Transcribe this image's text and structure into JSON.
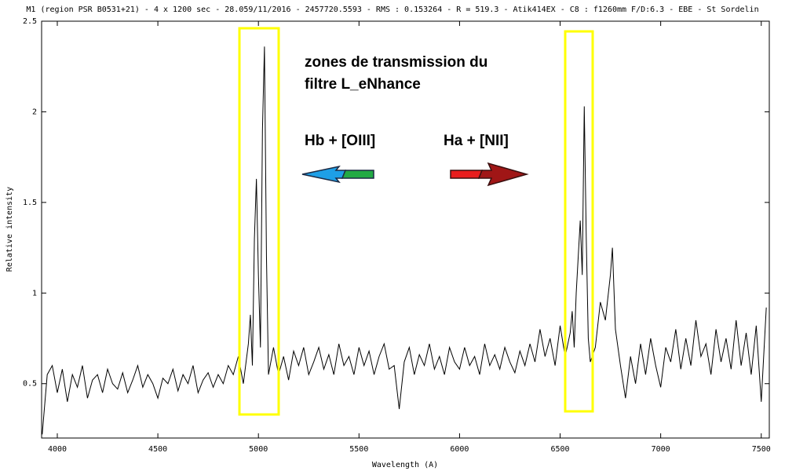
{
  "chart_data": {
    "type": "line",
    "title": "M1 (region PSR B0531+21) - 4 x 1200 sec - 28.059/11/2016 - 2457720.5593 - RMS : 0.153264 - R = 519.3 - Atik414EX - C8 : f1260mm F/D:6.3 - EBE - St Sordelin",
    "x_label": "Wavelength (A)",
    "y_label": "Relative intensity",
    "annotations": [
      "zones de transmission du",
      "filtre L_eNhance",
      "Hb + [OIII]",
      "Ha + [NII]"
    ],
    "xlim": [
      3922,
      7540
    ],
    "ylim": [
      0.2,
      2.5
    ],
    "xticks": [
      4000,
      4500,
      5000,
      5500,
      6000,
      6500,
      7000,
      7500
    ],
    "yticks": [
      0.5,
      1,
      1.5,
      2,
      2.5
    ],
    "grid": false,
    "x": [
      3925,
      3950,
      3975,
      4000,
      4025,
      4050,
      4075,
      4100,
      4125,
      4150,
      4175,
      4200,
      4225,
      4250,
      4275,
      4300,
      4325,
      4350,
      4375,
      4400,
      4425,
      4450,
      4475,
      4500,
      4525,
      4550,
      4575,
      4600,
      4625,
      4650,
      4675,
      4700,
      4725,
      4750,
      4775,
      4800,
      4825,
      4850,
      4875,
      4900,
      4925,
      4950,
      4960,
      4970,
      4980,
      4990,
      5000,
      5010,
      5020,
      5030,
      5040,
      5050,
      5075,
      5100,
      5125,
      5150,
      5175,
      5200,
      5225,
      5250,
      5275,
      5300,
      5325,
      5350,
      5375,
      5400,
      5425,
      5450,
      5475,
      5500,
      5525,
      5550,
      5575,
      5600,
      5625,
      5650,
      5675,
      5700,
      5725,
      5750,
      5775,
      5800,
      5825,
      5850,
      5875,
      5900,
      5925,
      5950,
      5975,
      6000,
      6025,
      6050,
      6075,
      6100,
      6125,
      6150,
      6175,
      6200,
      6225,
      6250,
      6275,
      6300,
      6325,
      6350,
      6375,
      6400,
      6425,
      6450,
      6475,
      6500,
      6525,
      6550,
      6560,
      6570,
      6580,
      6590,
      6600,
      6610,
      6620,
      6630,
      6640,
      6650,
      6675,
      6700,
      6725,
      6750,
      6760,
      6775,
      6800,
      6825,
      6850,
      6875,
      6900,
      6925,
      6950,
      6975,
      7000,
      7025,
      7050,
      7075,
      7100,
      7125,
      7150,
      7175,
      7200,
      7225,
      7250,
      7275,
      7300,
      7325,
      7350,
      7375,
      7400,
      7425,
      7450,
      7475,
      7500,
      7525
    ],
    "series": [
      {
        "name": "spectrum",
        "color": "#000000",
        "values": [
          0.22,
          0.55,
          0.6,
          0.45,
          0.58,
          0.4,
          0.55,
          0.48,
          0.6,
          0.42,
          0.52,
          0.55,
          0.45,
          0.58,
          0.5,
          0.47,
          0.56,
          0.45,
          0.52,
          0.6,
          0.48,
          0.55,
          0.5,
          0.42,
          0.53,
          0.5,
          0.58,
          0.46,
          0.55,
          0.5,
          0.6,
          0.45,
          0.52,
          0.56,
          0.48,
          0.55,
          0.5,
          0.6,
          0.55,
          0.65,
          0.5,
          0.72,
          0.88,
          0.6,
          1.3,
          1.63,
          1.1,
          0.7,
          1.9,
          2.36,
          1.2,
          0.55,
          0.7,
          0.55,
          0.65,
          0.52,
          0.68,
          0.6,
          0.7,
          0.55,
          0.62,
          0.7,
          0.58,
          0.66,
          0.55,
          0.72,
          0.6,
          0.65,
          0.55,
          0.7,
          0.6,
          0.68,
          0.55,
          0.65,
          0.72,
          0.58,
          0.6,
          0.36,
          0.62,
          0.7,
          0.55,
          0.66,
          0.6,
          0.72,
          0.58,
          0.65,
          0.55,
          0.7,
          0.62,
          0.58,
          0.7,
          0.6,
          0.65,
          0.55,
          0.72,
          0.6,
          0.66,
          0.58,
          0.7,
          0.62,
          0.56,
          0.68,
          0.6,
          0.72,
          0.62,
          0.8,
          0.65,
          0.75,
          0.6,
          0.82,
          0.65,
          0.78,
          0.9,
          0.7,
          1.0,
          1.2,
          1.4,
          1.1,
          2.03,
          1.3,
          0.75,
          0.62,
          0.7,
          0.95,
          0.85,
          1.1,
          1.25,
          0.8,
          0.6,
          0.42,
          0.65,
          0.5,
          0.72,
          0.55,
          0.75,
          0.6,
          0.48,
          0.7,
          0.62,
          0.8,
          0.58,
          0.75,
          0.6,
          0.85,
          0.65,
          0.72,
          0.55,
          0.8,
          0.62,
          0.75,
          0.58,
          0.85,
          0.6,
          0.78,
          0.55,
          0.82,
          0.4,
          0.92
        ]
      }
    ]
  }
}
